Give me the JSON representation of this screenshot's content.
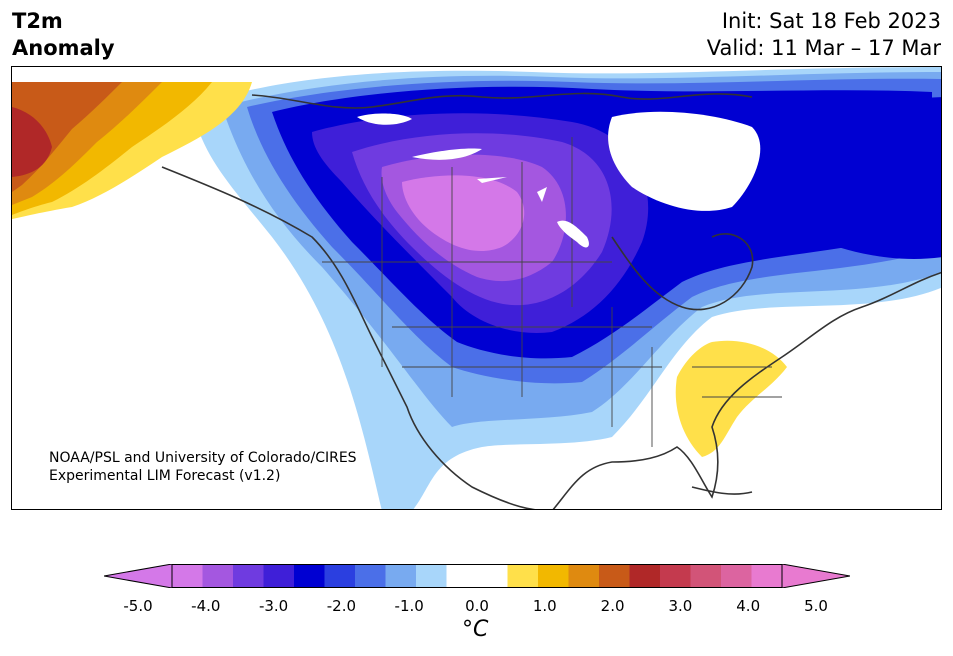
{
  "header": {
    "title_line1": "T2m",
    "title_line2": "Anomaly",
    "init_text": "Init: Sat 18 Feb 2023",
    "valid_text": "Valid: 11 Mar – 17 Mar"
  },
  "map": {
    "credit_line1": "NOAA/PSL and University of Colorado/CIRES",
    "credit_line2": "Experimental LIM Forecast (v1.2)"
  },
  "colorbar": {
    "tick_labels": [
      "-5.0",
      "-4.0",
      "-3.0",
      "-2.0",
      "-1.0",
      "0.0",
      "1.0",
      "2.0",
      "3.0",
      "4.0",
      "5.0"
    ],
    "unit": "°C",
    "colors": [
      "#d478e8",
      "#a457e0",
      "#6f3be0",
      "#3f1fd8",
      "#0000d2",
      "#2b3fe0",
      "#4b6fe8",
      "#78aaf0",
      "#a8d6fa",
      "#ffffff",
      "#ffffff",
      "#ffe04a",
      "#f2b800",
      "#df8a10",
      "#c85a18",
      "#b02828",
      "#c43a4e",
      "#d25478",
      "#dc64a0",
      "#e87ad0"
    ],
    "under_color": "#d478e8",
    "over_color": "#e87ad0"
  }
}
